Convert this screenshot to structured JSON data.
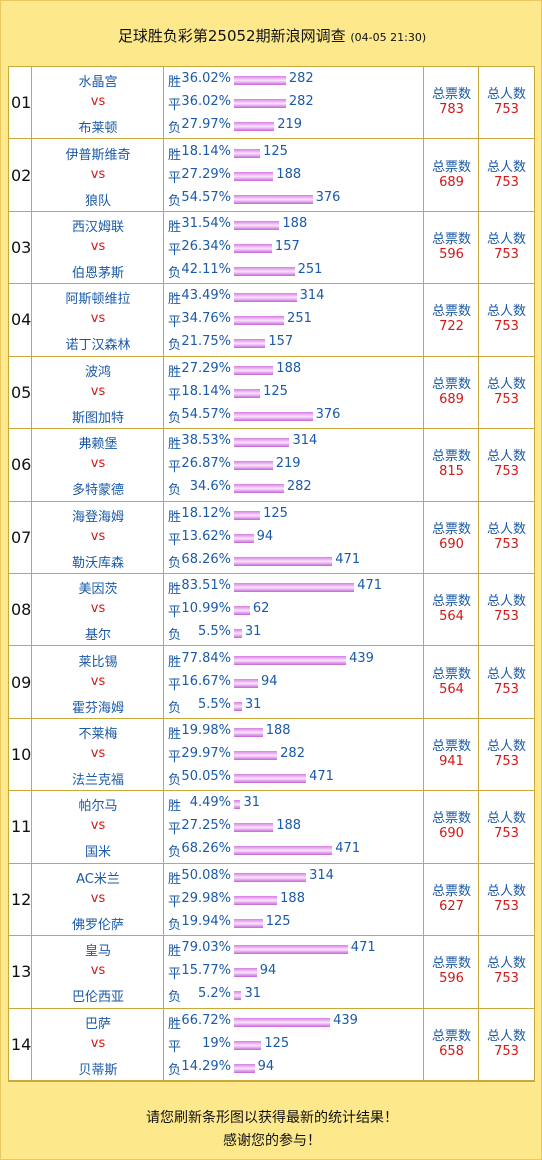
{
  "header": {
    "title": "足球胜负彩第25052期新浪网调查",
    "time": "(04-05 21:30)"
  },
  "table": {
    "vs": "vs",
    "outcome_labels": [
      "胜",
      "平",
      "负"
    ],
    "total_label": "总票数",
    "people_label": "总人数",
    "rows": [
      {
        "no": "01",
        "home": "水晶宫",
        "away": "布莱顿",
        "outcomes": [
          {
            "pct": 36.02,
            "pct_label": "36.02%",
            "count": 282
          },
          {
            "pct": 36.02,
            "pct_label": "36.02%",
            "count": 282
          },
          {
            "pct": 27.97,
            "pct_label": "27.97%",
            "count": 219
          }
        ],
        "total": 783,
        "people": 753
      },
      {
        "no": "02",
        "home": "伊普斯维奇",
        "away": "狼队",
        "outcomes": [
          {
            "pct": 18.14,
            "pct_label": "18.14%",
            "count": 125
          },
          {
            "pct": 27.29,
            "pct_label": "27.29%",
            "count": 188
          },
          {
            "pct": 54.57,
            "pct_label": "54.57%",
            "count": 376
          }
        ],
        "total": 689,
        "people": 753
      },
      {
        "no": "03",
        "home": "西汉姆联",
        "away": "伯恩茅斯",
        "outcomes": [
          {
            "pct": 31.54,
            "pct_label": "31.54%",
            "count": 188
          },
          {
            "pct": 26.34,
            "pct_label": "26.34%",
            "count": 157
          },
          {
            "pct": 42.11,
            "pct_label": "42.11%",
            "count": 251
          }
        ],
        "total": 596,
        "people": 753
      },
      {
        "no": "04",
        "home": "阿斯顿维拉",
        "away": "诺丁汉森林",
        "outcomes": [
          {
            "pct": 43.49,
            "pct_label": "43.49%",
            "count": 314
          },
          {
            "pct": 34.76,
            "pct_label": "34.76%",
            "count": 251
          },
          {
            "pct": 21.75,
            "pct_label": "21.75%",
            "count": 157
          }
        ],
        "total": 722,
        "people": 753
      },
      {
        "no": "05",
        "home": "波鸿",
        "away": "斯图加特",
        "outcomes": [
          {
            "pct": 27.29,
            "pct_label": "27.29%",
            "count": 188
          },
          {
            "pct": 18.14,
            "pct_label": "18.14%",
            "count": 125
          },
          {
            "pct": 54.57,
            "pct_label": "54.57%",
            "count": 376
          }
        ],
        "total": 689,
        "people": 753
      },
      {
        "no": "06",
        "home": "弗赖堡",
        "away": "多特蒙德",
        "outcomes": [
          {
            "pct": 38.53,
            "pct_label": "38.53%",
            "count": 314
          },
          {
            "pct": 26.87,
            "pct_label": "26.87%",
            "count": 219
          },
          {
            "pct": 34.6,
            "pct_label": "34.6%",
            "count": 282
          }
        ],
        "total": 815,
        "people": 753
      },
      {
        "no": "07",
        "home": "海登海姆",
        "away": "勒沃库森",
        "outcomes": [
          {
            "pct": 18.12,
            "pct_label": "18.12%",
            "count": 125
          },
          {
            "pct": 13.62,
            "pct_label": "13.62%",
            "count": 94
          },
          {
            "pct": 68.26,
            "pct_label": "68.26%",
            "count": 471
          }
        ],
        "total": 690,
        "people": 753
      },
      {
        "no": "08",
        "home": "美因茨",
        "away": "基尔",
        "outcomes": [
          {
            "pct": 83.51,
            "pct_label": "83.51%",
            "count": 471
          },
          {
            "pct": 10.99,
            "pct_label": "10.99%",
            "count": 62
          },
          {
            "pct": 5.5,
            "pct_label": "5.5%",
            "count": 31
          }
        ],
        "total": 564,
        "people": 753
      },
      {
        "no": "09",
        "home": "莱比锡",
        "away": "霍芬海姆",
        "outcomes": [
          {
            "pct": 77.84,
            "pct_label": "77.84%",
            "count": 439
          },
          {
            "pct": 16.67,
            "pct_label": "16.67%",
            "count": 94
          },
          {
            "pct": 5.5,
            "pct_label": "5.5%",
            "count": 31
          }
        ],
        "total": 564,
        "people": 753
      },
      {
        "no": "10",
        "home": "不莱梅",
        "away": "法兰克福",
        "outcomes": [
          {
            "pct": 19.98,
            "pct_label": "19.98%",
            "count": 188
          },
          {
            "pct": 29.97,
            "pct_label": "29.97%",
            "count": 282
          },
          {
            "pct": 50.05,
            "pct_label": "50.05%",
            "count": 471
          }
        ],
        "total": 941,
        "people": 753
      },
      {
        "no": "11",
        "home": "帕尔马",
        "away": "国米",
        "outcomes": [
          {
            "pct": 4.49,
            "pct_label": "4.49%",
            "count": 31
          },
          {
            "pct": 27.25,
            "pct_label": "27.25%",
            "count": 188
          },
          {
            "pct": 68.26,
            "pct_label": "68.26%",
            "count": 471
          }
        ],
        "total": 690,
        "people": 753
      },
      {
        "no": "12",
        "home": "AC米兰",
        "away": "佛罗伦萨",
        "outcomes": [
          {
            "pct": 50.08,
            "pct_label": "50.08%",
            "count": 314
          },
          {
            "pct": 29.98,
            "pct_label": "29.98%",
            "count": 188
          },
          {
            "pct": 19.94,
            "pct_label": "19.94%",
            "count": 125
          }
        ],
        "total": 627,
        "people": 753
      },
      {
        "no": "13",
        "home": "皇马",
        "away": "巴伦西亚",
        "outcomes": [
          {
            "pct": 79.03,
            "pct_label": "79.03%",
            "count": 471
          },
          {
            "pct": 15.77,
            "pct_label": "15.77%",
            "count": 94
          },
          {
            "pct": 5.2,
            "pct_label": "5.2%",
            "count": 31
          }
        ],
        "total": 596,
        "people": 753
      },
      {
        "no": "14",
        "home": "巴萨",
        "away": "贝蒂斯",
        "outcomes": [
          {
            "pct": 66.72,
            "pct_label": "66.72%",
            "count": 439
          },
          {
            "pct": 19,
            "pct_label": "19%",
            "count": 125
          },
          {
            "pct": 14.29,
            "pct_label": "14.29%",
            "count": 94
          }
        ],
        "total": 658,
        "people": 753
      }
    ]
  },
  "footer": {
    "line1": "请您刷新条形图以获得最新的统计结果！",
    "line2": "感谢您的参与！"
  }
}
